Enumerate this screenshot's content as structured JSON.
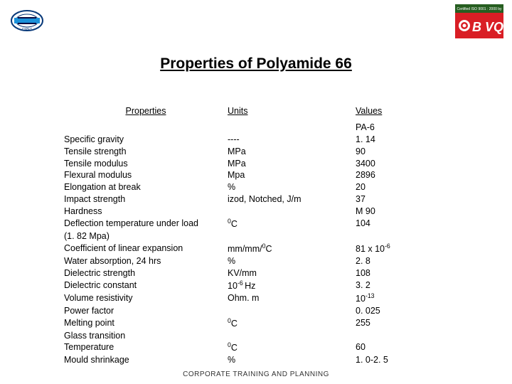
{
  "title": "Properties of Polyamide 66",
  "headers": {
    "prop": "Properties",
    "units": " Units",
    "values": "Values"
  },
  "subheader": "PA-6",
  "rows": [
    {
      "prop": "Specific gravity",
      "units": "----",
      "value": " 1. 14"
    },
    {
      "prop": "Tensile strength",
      "units": "MPa",
      "value": "90"
    },
    {
      "prop": "Tensile modulus",
      "units": "MPa",
      "value": "3400"
    },
    {
      "prop": "Flexural modulus",
      "units": "Mpa",
      "value": " 2896"
    },
    {
      "prop": "Elongation at break",
      "units": "%",
      "value": " 20"
    },
    {
      "prop": "Impact strength",
      "units": "izod, Notched, J/m",
      "value": " 37"
    },
    {
      "prop": "Hardness",
      "units": "",
      "value": " M 90"
    },
    {
      "prop": "Deflection temperature under load",
      "units_html": "<sup>0</sup>C",
      "value": "104"
    },
    {
      "prop": "(1. 82 Mpa)",
      "units": "",
      "value": ""
    },
    {
      "prop": "Coefficient of linear expansion",
      "units_html": "mm/mm/<sup>0</sup>C",
      "value_html": "81 x 10<sup>-6</sup>"
    },
    {
      "prop": "Water absorption, 24 hrs",
      "units": "%",
      "value": "2. 8"
    },
    {
      "prop": "Dielectric strength",
      "units": "KV/mm",
      "value": "108"
    },
    {
      "prop": "Dielectric constant",
      "units_html": "10<sup>-6 </sup>Hz",
      "value": "3. 2"
    },
    {
      "prop": "Volume resistivity",
      "units": "Ohm. m",
      "value_html": "10<sup>-13</sup>"
    },
    {
      "prop": "Power factor",
      "units": "",
      "value": "0. 025"
    },
    {
      "prop": "Melting point",
      "units_html": "<sup>0</sup>C",
      "value": "255"
    },
    {
      "prop": "Glass transition",
      "units": "",
      "value": ""
    },
    {
      "prop": "Temperature",
      "units_html": "<sup>0</sup>C",
      "value": "60"
    },
    {
      "prop": "Mould shrinkage",
      "units": "%",
      "value": "1. 0-2. 5"
    }
  ],
  "footer": "CORPORATE TRAINING AND PLANNING",
  "logos": {
    "left": {
      "bg": "#ffffff",
      "ellipse_stroke": "#0a3a7a",
      "bar_fill": "#1b91d9",
      "text": "CIPET",
      "text_color": "#0a3a7a"
    },
    "right": {
      "top_text": "Certified ISO 9001 : 2000 by",
      "top_bg": "#265e20",
      "top_color": "#ffffff",
      "main_bg": "#d91e25",
      "main_text": "BVQi",
      "main_color": "#ffffff",
      "dot_color": "#ffffff"
    }
  },
  "colors": {
    "page_bg": "#ffffff",
    "text": "#000000"
  }
}
